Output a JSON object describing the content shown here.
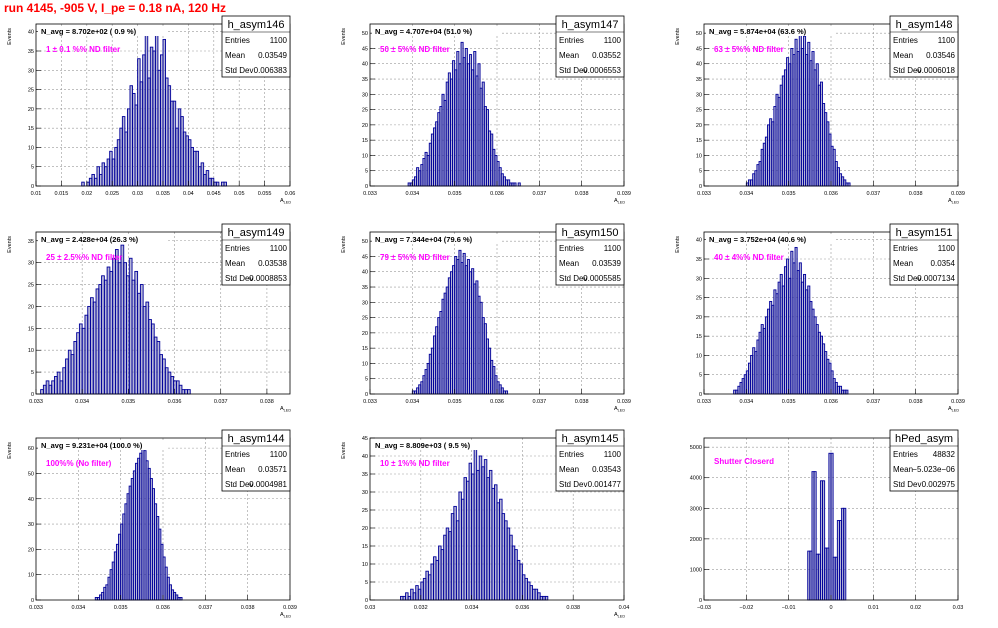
{
  "run_title": "run 4145,  -905 V, I_pe = 0.18 nA, 120 Hz",
  "colors": {
    "title": "#ff0000",
    "histogram_line": "#000099",
    "histogram_fill": "#7a7ab8",
    "annotation": "#ff00ff",
    "grid": "#9a9a9a"
  },
  "stat_labels": {
    "entries": "Entries",
    "mean": "Mean",
    "std": "Std Dev"
  },
  "chart_data": [
    {
      "type": "bar",
      "name": "h_asym146",
      "title": "N_avg = 8.702e+02 ( 0.9 %)",
      "annotation": "1 ± 0.1 %% ND filter",
      "stats": {
        "entries": "1100",
        "mean": "0.03549",
        "std": "0.006383"
      },
      "xlabel": "A_LED",
      "ylabel": "Events",
      "xlim": [
        0.01,
        0.06
      ],
      "ylim": [
        0,
        42
      ],
      "xticks": [
        0.01,
        0.015,
        0.02,
        0.025,
        0.03,
        0.035,
        0.04,
        0.045,
        0.05,
        0.055,
        0.06
      ],
      "xtick_labels": [
        "0.01",
        "0.015",
        "0.02",
        "0.025",
        "0.03",
        "0.035",
        "0.04",
        "0.045",
        "0.05",
        "0.055",
        "0.06"
      ],
      "yticks": [
        0,
        5,
        10,
        15,
        20,
        25,
        30,
        35,
        40
      ],
      "ytick_labels": [
        "0",
        "5",
        "10",
        "15",
        "20",
        "25",
        "30",
        "35",
        "40"
      ],
      "bin_start": 0.019,
      "bin_width": 0.0005,
      "values": [
        1,
        0,
        1,
        2,
        3,
        2,
        5,
        3,
        6,
        5,
        7,
        9,
        7,
        10,
        12,
        15,
        18,
        14,
        20,
        26,
        24,
        21,
        33,
        27,
        34,
        40,
        28,
        36,
        35,
        39,
        30,
        34,
        38,
        28,
        26,
        22,
        22,
        15,
        20,
        18,
        14,
        13,
        12,
        10,
        9,
        9,
        5,
        6,
        3,
        4,
        2,
        2,
        1,
        1,
        0,
        1,
        1
      ]
    },
    {
      "type": "bar",
      "name": "h_asym147",
      "title": "N_avg = 4.707e+04 (51.0 %)",
      "annotation": "50 ± 5%% ND filter",
      "stats": {
        "entries": "1100",
        "mean": "0.03552",
        "std": "0.0006553"
      },
      "xlabel": "A_LED",
      "ylabel": "Events",
      "xlim": [
        0.033,
        0.039
      ],
      "ylim": [
        0,
        53
      ],
      "xticks": [
        0.033,
        0.034,
        0.035,
        0.036,
        0.037,
        0.038,
        0.039
      ],
      "xtick_labels": [
        "0.033",
        "0.034",
        "0.035",
        "0.036",
        "0.037",
        "0.038",
        "0.039"
      ],
      "yticks": [
        0,
        5,
        10,
        15,
        20,
        25,
        30,
        35,
        40,
        45,
        50
      ],
      "ytick_labels": [
        "0",
        "5",
        "10",
        "15",
        "20",
        "25",
        "30",
        "35",
        "40",
        "45",
        "50"
      ],
      "bin_start": 0.0339,
      "bin_width": 5e-05,
      "values": [
        1,
        1,
        2,
        3,
        6,
        5,
        7,
        9,
        11,
        10,
        14,
        17,
        19,
        21,
        24,
        26,
        30,
        28,
        34,
        37,
        35,
        41,
        38,
        44,
        40,
        47,
        42,
        45,
        40,
        43,
        38,
        44,
        36,
        40,
        32,
        34,
        26,
        25,
        18,
        17,
        12,
        10,
        8,
        6,
        4,
        3,
        2,
        2,
        1,
        1,
        1,
        0,
        1
      ]
    },
    {
      "type": "bar",
      "name": "h_asym148",
      "title": "N_avg = 5.874e+04 (63.6 %)",
      "annotation": "63 ± 5%% ND filter",
      "stats": {
        "entries": "1100",
        "mean": "0.03546",
        "std": "0.0006018"
      },
      "xlabel": "A_LED",
      "ylabel": "Events",
      "xlim": [
        0.033,
        0.039
      ],
      "ylim": [
        0,
        53
      ],
      "xticks": [
        0.033,
        0.034,
        0.035,
        0.036,
        0.037,
        0.038,
        0.039
      ],
      "xtick_labels": [
        "0.033",
        "0.034",
        "0.035",
        "0.036",
        "0.037",
        "0.038",
        "0.039"
      ],
      "yticks": [
        0,
        5,
        10,
        15,
        20,
        25,
        30,
        35,
        40,
        45,
        50
      ],
      "ytick_labels": [
        "0",
        "5",
        "10",
        "15",
        "20",
        "25",
        "30",
        "35",
        "40",
        "45",
        "50"
      ],
      "bin_start": 0.034,
      "bin_width": 5e-05,
      "values": [
        1,
        2,
        2,
        4,
        5,
        7,
        8,
        12,
        14,
        16,
        20,
        22,
        21,
        26,
        30,
        29,
        33,
        36,
        38,
        42,
        40,
        45,
        43,
        48,
        44,
        51,
        45,
        49,
        43,
        47,
        41,
        44,
        38,
        40,
        33,
        34,
        27,
        24,
        21,
        17,
        13,
        12,
        8,
        6,
        4,
        3,
        2,
        1,
        1
      ]
    },
    {
      "type": "bar",
      "name": "h_asym149",
      "title": "N_avg = 2.428e+04 (26.3 %)",
      "annotation": "25 ± 2.5%% ND filter",
      "stats": {
        "entries": "1100",
        "mean": "0.03538",
        "std": "0.0008853"
      },
      "xlabel": "A_LED",
      "ylabel": "Events",
      "xlim": [
        0.033,
        0.0385
      ],
      "ylim": [
        0,
        37
      ],
      "xticks": [
        0.033,
        0.034,
        0.035,
        0.036,
        0.037,
        0.038
      ],
      "xtick_labels": [
        "0.033",
        "0.034",
        "0.035",
        "0.036",
        "0.037",
        "0.038"
      ],
      "yticks": [
        0,
        5,
        10,
        15,
        20,
        25,
        30,
        35
      ],
      "ytick_labels": [
        "0",
        "5",
        "10",
        "15",
        "20",
        "25",
        "30",
        "35"
      ],
      "bin_start": 0.0331,
      "bin_width": 6e-05,
      "values": [
        1,
        2,
        3,
        2,
        3,
        4,
        5,
        3,
        6,
        8,
        10,
        9,
        12,
        14,
        16,
        15,
        18,
        20,
        22,
        21,
        24,
        25,
        27,
        26,
        29,
        28,
        31,
        33,
        30,
        34,
        30,
        27,
        31,
        26,
        28,
        23,
        25,
        20,
        21,
        17,
        16,
        13,
        12,
        9,
        8,
        6,
        5,
        4,
        3,
        3,
        2,
        1,
        1,
        1
      ]
    },
    {
      "type": "bar",
      "name": "h_asym150",
      "title": "N_avg = 7.344e+04 (79.6 %)",
      "annotation": "79 ± 5%% ND filter",
      "stats": {
        "entries": "1100",
        "mean": "0.03539",
        "std": "0.0005585"
      },
      "xlabel": "A_LED",
      "ylabel": "Events",
      "xlim": [
        0.033,
        0.039
      ],
      "ylim": [
        0,
        53
      ],
      "xticks": [
        0.033,
        0.034,
        0.035,
        0.036,
        0.037,
        0.038,
        0.039
      ],
      "xtick_labels": [
        "0.033",
        "0.034",
        "0.035",
        "0.036",
        "0.037",
        "0.038",
        "0.039"
      ],
      "yticks": [
        0,
        5,
        10,
        15,
        20,
        25,
        30,
        35,
        40,
        45,
        50
      ],
      "ytick_labels": [
        "0",
        "5",
        "10",
        "15",
        "20",
        "25",
        "30",
        "35",
        "40",
        "45",
        "50"
      ],
      "bin_start": 0.034,
      "bin_width": 5e-05,
      "values": [
        1,
        1,
        2,
        3,
        4,
        6,
        8,
        10,
        13,
        15,
        19,
        22,
        25,
        27,
        31,
        33,
        35,
        38,
        40,
        42,
        45,
        44,
        47,
        43,
        46,
        42,
        44,
        40,
        41,
        36,
        37,
        32,
        30,
        25,
        23,
        18,
        15,
        11,
        9,
        6,
        4,
        3,
        2,
        1,
        1
      ]
    },
    {
      "type": "bar",
      "name": "h_asym151",
      "title": "N_avg = 3.752e+04 (40.6 %)",
      "annotation": "40 ± 4%% ND filter",
      "stats": {
        "entries": "1100",
        "mean": "0.0354",
        "std": "0.0007134"
      },
      "xlabel": "A_LED",
      "ylabel": "Events",
      "xlim": [
        0.033,
        0.039
      ],
      "ylim": [
        0,
        42
      ],
      "xticks": [
        0.033,
        0.034,
        0.035,
        0.036,
        0.037,
        0.038,
        0.039
      ],
      "xtick_labels": [
        "0.033",
        "0.034",
        "0.035",
        "0.036",
        "0.037",
        "0.038",
        "0.039"
      ],
      "yticks": [
        0,
        5,
        10,
        15,
        20,
        25,
        30,
        35,
        40
      ],
      "ytick_labels": [
        "0",
        "5",
        "10",
        "15",
        "20",
        "25",
        "30",
        "35",
        "40"
      ],
      "bin_start": 0.0337,
      "bin_width": 5e-05,
      "values": [
        1,
        1,
        2,
        3,
        4,
        5,
        6,
        8,
        10,
        12,
        11,
        14,
        16,
        18,
        17,
        20,
        22,
        24,
        23,
        27,
        26,
        29,
        31,
        28,
        33,
        35,
        30,
        37,
        34,
        38,
        32,
        34,
        29,
        31,
        27,
        28,
        24,
        22,
        20,
        18,
        16,
        15,
        13,
        11,
        9,
        8,
        6,
        4,
        3,
        2,
        2,
        1,
        1,
        1
      ]
    },
    {
      "type": "bar",
      "name": "h_asym144",
      "title": "N_avg = 9.231e+04 (100.0 %)",
      "annotation": "100%% (No filter)",
      "stats": {
        "entries": "1100",
        "mean": "0.03571",
        "std": "0.0004981"
      },
      "xlabel": "A_LED",
      "ylabel": "Events",
      "xlim": [
        0.033,
        0.039
      ],
      "ylim": [
        0,
        64
      ],
      "xticks": [
        0.033,
        0.034,
        0.035,
        0.036,
        0.037,
        0.038,
        0.039
      ],
      "xtick_labels": [
        "0.033",
        "0.034",
        "0.035",
        "0.036",
        "0.037",
        "0.038",
        "0.039"
      ],
      "yticks": [
        0,
        10,
        20,
        30,
        40,
        50,
        60
      ],
      "ytick_labels": [
        "0",
        "10",
        "20",
        "30",
        "40",
        "50",
        "60"
      ],
      "bin_start": 0.0344,
      "bin_width": 5e-05,
      "values": [
        1,
        1,
        2,
        3,
        5,
        6,
        9,
        12,
        15,
        19,
        22,
        26,
        30,
        34,
        38,
        42,
        45,
        48,
        51,
        54,
        56,
        58,
        60,
        59,
        55,
        52,
        48,
        44,
        38,
        33,
        28,
        22,
        17,
        13,
        9,
        6,
        4,
        3,
        2,
        1,
        1
      ]
    },
    {
      "type": "bar",
      "name": "h_asym145",
      "title": "N_avg = 8.809e+03 ( 9.5 %)",
      "annotation": "10 ± 1%% ND filter",
      "stats": {
        "entries": "1100",
        "mean": "0.03543",
        "std": "0.001477"
      },
      "xlabel": "A_LED",
      "ylabel": "Events",
      "xlim": [
        0.03,
        0.04
      ],
      "ylim": [
        0,
        45
      ],
      "xticks": [
        0.03,
        0.032,
        0.034,
        0.036,
        0.038,
        0.04
      ],
      "xtick_labels": [
        "0.03",
        "0.032",
        "0.034",
        "0.036",
        "0.038",
        "0.04"
      ],
      "yticks": [
        0,
        5,
        10,
        15,
        20,
        25,
        30,
        35,
        40,
        45
      ],
      "ytick_labels": [
        "0",
        "5",
        "10",
        "15",
        "20",
        "25",
        "30",
        "35",
        "40",
        "45"
      ],
      "bin_start": 0.0312,
      "bin_width": 0.0001,
      "values": [
        1,
        1,
        2,
        1,
        3,
        2,
        4,
        3,
        5,
        6,
        8,
        7,
        10,
        12,
        11,
        15,
        14,
        18,
        20,
        19,
        24,
        26,
        22,
        30,
        28,
        34,
        33,
        38,
        35,
        42,
        36,
        40,
        37,
        39,
        34,
        36,
        31,
        32,
        27,
        28,
        24,
        22,
        20,
        18,
        15,
        14,
        11,
        10,
        7,
        6,
        5,
        4,
        3,
        3,
        2,
        1,
        1,
        1
      ]
    },
    {
      "type": "bar",
      "name": "hPed_asym",
      "title": "",
      "annotation": "Shutter Closerd",
      "stats": {
        "entries": "48832",
        "mean": "−5.023e−06",
        "std": "0.002975"
      },
      "xlabel": "",
      "ylabel": "",
      "xlim": [
        -0.03,
        0.03
      ],
      "ylim": [
        0,
        5300
      ],
      "xticks": [
        -0.03,
        -0.02,
        -0.01,
        0,
        0.01,
        0.02,
        0.03
      ],
      "xtick_labels": [
        "−0.03",
        "−0.02",
        "−0.01",
        "0",
        "0.01",
        "0.02",
        "0.03"
      ],
      "yticks": [
        0,
        1000,
        2000,
        3000,
        4000,
        5000
      ],
      "ytick_labels": [
        "0",
        "1000",
        "2000",
        "3000",
        "4000",
        "5000"
      ],
      "bin_start": -0.0055,
      "bin_width": 0.0005,
      "values": [
        1600,
        1600,
        4200,
        4200,
        1500,
        1500,
        3900,
        3900,
        1700,
        1700,
        4800,
        4800,
        1400,
        1400,
        2600,
        2600,
        3000,
        3000
      ]
    }
  ]
}
